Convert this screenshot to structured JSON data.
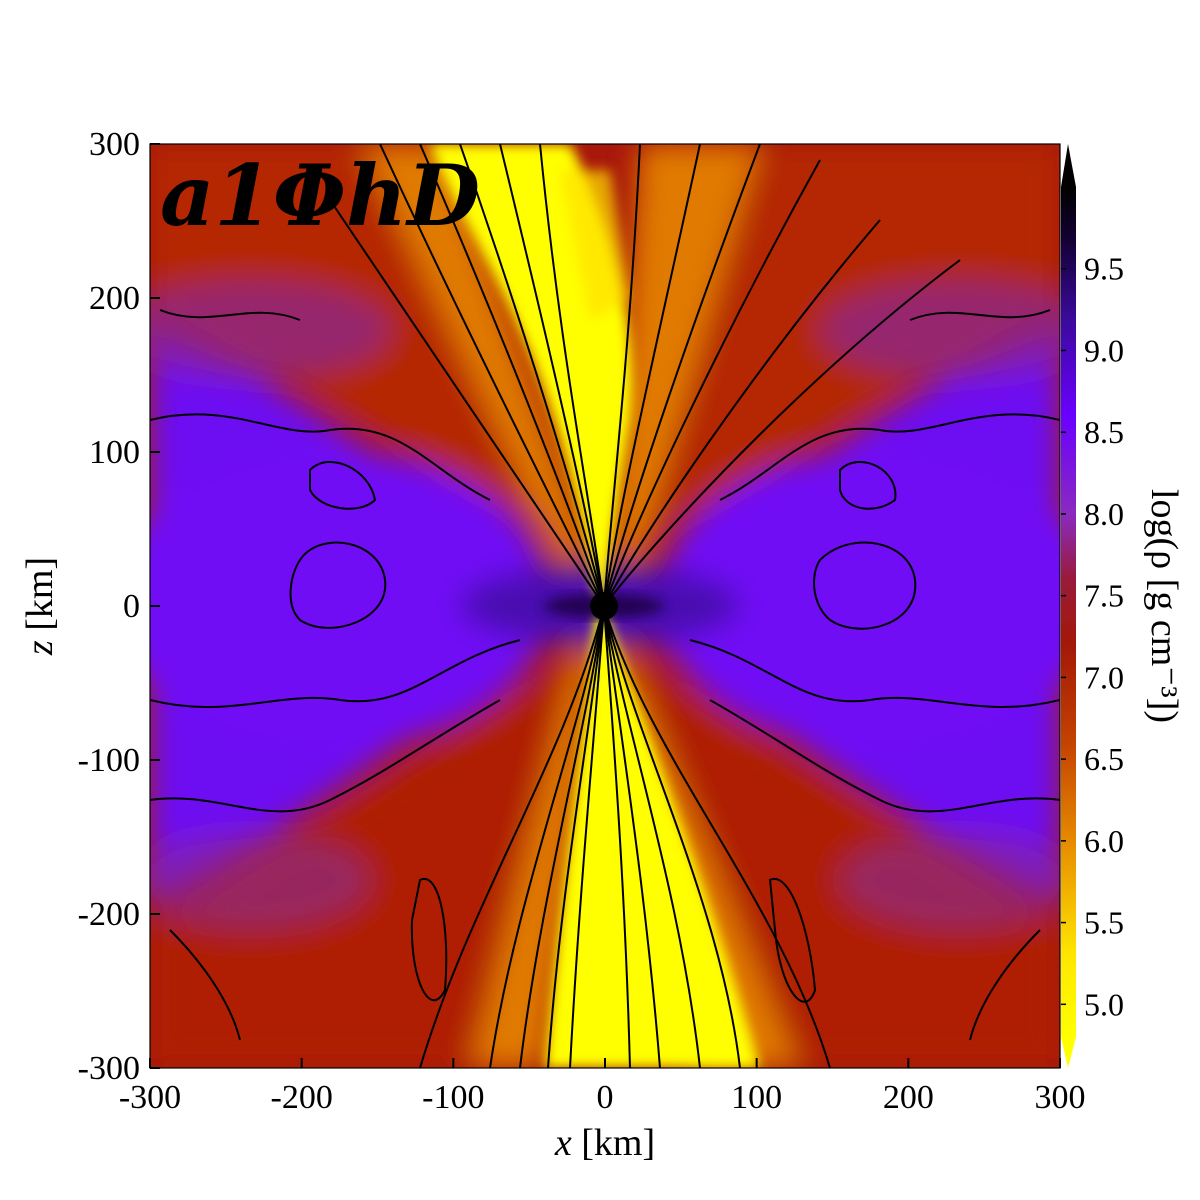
{
  "chart_data": {
    "type": "heatmap",
    "panel_label": "a1ΦhD",
    "xlabel_var": "x",
    "xlabel_unit": "[km]",
    "ylabel_var": "z",
    "ylabel_unit": "[km]",
    "xlim": [
      -300,
      300
    ],
    "ylim": [
      -300,
      300
    ],
    "x_ticks": [
      "-300",
      "-200",
      "-100",
      "0",
      "100",
      "200",
      "300"
    ],
    "y_ticks": [
      "300",
      "200",
      "100",
      "0",
      "-100",
      "-200",
      "-300"
    ],
    "x_tick_values": [
      -300,
      -200,
      -100,
      0,
      100,
      200,
      300
    ],
    "y_tick_values": [
      300,
      200,
      100,
      0,
      -100,
      -200,
      -300
    ],
    "colorbar": {
      "label": "log(ρ [g cm⁻³])",
      "range": [
        4.8,
        10.0
      ],
      "extend": "both",
      "ticks": [
        "9.5",
        "9.0",
        "8.5",
        "8.0",
        "7.5",
        "7.0",
        "6.5",
        "6.0",
        "5.5",
        "5.0"
      ],
      "tick_values": [
        9.5,
        9.0,
        8.5,
        8.0,
        7.5,
        7.0,
        6.5,
        6.0,
        5.5,
        5.0
      ],
      "colormap": [
        {
          "v": 4.8,
          "color": "#ffff00"
        },
        {
          "v": 5.3,
          "color": "#ffe600"
        },
        {
          "v": 6.0,
          "color": "#e68a00"
        },
        {
          "v": 6.6,
          "color": "#c44200"
        },
        {
          "v": 7.2,
          "color": "#a31808"
        },
        {
          "v": 7.6,
          "color": "#9a1a3a"
        },
        {
          "v": 8.0,
          "color": "#8a2ac0"
        },
        {
          "v": 8.6,
          "color": "#6a00ff"
        },
        {
          "v": 9.2,
          "color": "#3a0a9a"
        },
        {
          "v": 9.7,
          "color": "#120030"
        },
        {
          "v": 10.0,
          "color": "#000000"
        }
      ]
    },
    "field_lines": "black magnetic field contours converging at the origin",
    "grid": false
  }
}
